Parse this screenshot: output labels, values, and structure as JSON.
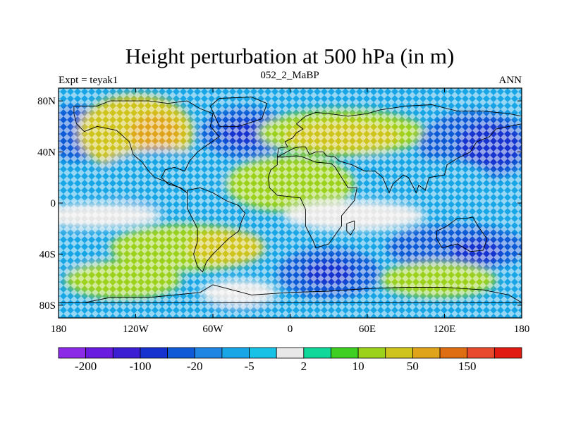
{
  "figure": {
    "title": "Height perturbation at 500 hPa (in m)",
    "left_label": "Expt = teyak1",
    "center_label": "052_2_MaBP",
    "right_label": "ANN"
  },
  "map": {
    "projection": "cylindrical equidistant",
    "lon_range": [
      -180,
      180
    ],
    "lat_range": [
      -90,
      90
    ],
    "x_ticks": [
      "180",
      "120W",
      "60W",
      "0",
      "60E",
      "120E",
      "180"
    ],
    "x_tick_lons": [
      -180,
      -120,
      -60,
      0,
      60,
      120,
      180
    ],
    "y_ticks": [
      "80N",
      "40N",
      "0",
      "40S",
      "80S"
    ],
    "y_tick_lats": [
      80,
      40,
      0,
      -40,
      -80
    ]
  },
  "colorbar": {
    "colors": [
      "#8b2be8",
      "#6a1be0",
      "#3c1fd2",
      "#1633cf",
      "#0f5ad6",
      "#1f86e4",
      "#18a6e6",
      "#18c2e6",
      "#e8e8e8",
      "#10d79a",
      "#3fcf22",
      "#9cd21a",
      "#cfc41c",
      "#e0a41a",
      "#df6e12",
      "#e84a2e",
      "#e11b12"
    ],
    "labels": [
      "-200",
      "-100",
      "-20",
      "-5",
      "2",
      "10",
      "50",
      "150"
    ],
    "label_edges": [
      1,
      3,
      5,
      7,
      9,
      11,
      13,
      15
    ]
  },
  "field_blobs": [
    {
      "lon": -168,
      "lat": 55,
      "rx": 22,
      "ry": 22,
      "level": -2
    },
    {
      "lon": -120,
      "lat": 55,
      "rx": 45,
      "ry": 30,
      "level": 2
    },
    {
      "lon": -105,
      "lat": 55,
      "rx": 20,
      "ry": 14,
      "level": 3
    },
    {
      "lon": -35,
      "lat": 55,
      "rx": 35,
      "ry": 20,
      "level": -2
    },
    {
      "lon": -35,
      "lat": 55,
      "rx": 18,
      "ry": 10,
      "level": -3
    },
    {
      "lon": 40,
      "lat": 55,
      "rx": 65,
      "ry": 18,
      "level": 1
    },
    {
      "lon": 40,
      "lat": 52,
      "rx": 45,
      "ry": 12,
      "level": 2
    },
    {
      "lon": 145,
      "lat": 45,
      "rx": 45,
      "ry": 27,
      "level": -2
    },
    {
      "lon": 155,
      "lat": 45,
      "rx": 25,
      "ry": 18,
      "level": -3
    },
    {
      "lon": -100,
      "lat": 20,
      "rx": 50,
      "ry": 22,
      "level": -1
    },
    {
      "lon": 0,
      "lat": 15,
      "rx": 50,
      "ry": 22,
      "level": 1
    },
    {
      "lon": 110,
      "lat": 20,
      "rx": 45,
      "ry": 14,
      "level": -1
    },
    {
      "lon": 70,
      "lat": 30,
      "rx": 20,
      "ry": 8,
      "level": -1
    },
    {
      "lon": -150,
      "lat": -10,
      "rx": 50,
      "ry": 10,
      "level": 0
    },
    {
      "lon": 50,
      "lat": -10,
      "rx": 55,
      "ry": 12,
      "level": 0
    },
    {
      "lon": -80,
      "lat": -35,
      "rx": 60,
      "ry": 18,
      "level": 1
    },
    {
      "lon": -50,
      "lat": -35,
      "rx": 30,
      "ry": 14,
      "level": 2
    },
    {
      "lon": -168,
      "lat": -40,
      "rx": 22,
      "ry": 15,
      "level": -1
    },
    {
      "lon": 130,
      "lat": -35,
      "rx": 55,
      "ry": 18,
      "level": -2
    },
    {
      "lon": 145,
      "lat": -38,
      "rx": 20,
      "ry": 10,
      "level": -3
    },
    {
      "lon": 30,
      "lat": -55,
      "rx": 40,
      "ry": 20,
      "level": -2
    },
    {
      "lon": 30,
      "lat": -55,
      "rx": 20,
      "ry": 10,
      "level": -3
    },
    {
      "lon": -130,
      "lat": -60,
      "rx": 45,
      "ry": 15,
      "level": 1
    },
    {
      "lon": 115,
      "lat": -60,
      "rx": 45,
      "ry": 14,
      "level": 1
    },
    {
      "lon": -40,
      "lat": -70,
      "rx": 30,
      "ry": 10,
      "level": 0
    },
    {
      "lon": 0,
      "lat": -85,
      "rx": 180,
      "ry": 5,
      "level": -1
    }
  ],
  "coastlines": [
    [
      [
        -168,
        76
      ],
      [
        -150,
        76
      ],
      [
        -140,
        80
      ],
      [
        -110,
        80
      ],
      [
        -95,
        78
      ],
      [
        -80,
        80
      ],
      [
        -70,
        74
      ],
      [
        -60,
        70
      ],
      [
        -62,
        60
      ],
      [
        -55,
        52
      ],
      [
        -65,
        45
      ],
      [
        -72,
        40
      ],
      [
        -78,
        33
      ],
      [
        -82,
        25
      ],
      [
        -90,
        28
      ],
      [
        -97,
        26
      ],
      [
        -100,
        20
      ],
      [
        -95,
        15
      ],
      [
        -85,
        12
      ],
      [
        -80,
        8
      ],
      [
        -86,
        12
      ],
      [
        -92,
        15
      ],
      [
        -105,
        20
      ],
      [
        -110,
        25
      ],
      [
        -115,
        32
      ],
      [
        -122,
        38
      ],
      [
        -125,
        48
      ],
      [
        -135,
        57
      ],
      [
        -150,
        60
      ],
      [
        -160,
        56
      ],
      [
        -166,
        62
      ],
      [
        -168,
        70
      ],
      [
        -168,
        76
      ]
    ],
    [
      [
        -80,
        10
      ],
      [
        -70,
        12
      ],
      [
        -60,
        8
      ],
      [
        -50,
        2
      ],
      [
        -40,
        -2
      ],
      [
        -35,
        -8
      ],
      [
        -38,
        -15
      ],
      [
        -40,
        -22
      ],
      [
        -48,
        -28
      ],
      [
        -55,
        -35
      ],
      [
        -60,
        -40
      ],
      [
        -65,
        -46
      ],
      [
        -68,
        -54
      ],
      [
        -72,
        -50
      ],
      [
        -75,
        -40
      ],
      [
        -72,
        -30
      ],
      [
        -72,
        -20
      ],
      [
        -76,
        -12
      ],
      [
        -80,
        -4
      ],
      [
        -80,
        4
      ],
      [
        -80,
        10
      ]
    ],
    [
      [
        -55,
        60
      ],
      [
        -40,
        60
      ],
      [
        -22,
        66
      ],
      [
        -18,
        78
      ],
      [
        -30,
        83
      ],
      [
        -55,
        82
      ],
      [
        -62,
        76
      ],
      [
        -55,
        60
      ]
    ],
    [
      [
        -10,
        36
      ],
      [
        -5,
        36
      ],
      [
        5,
        37
      ],
      [
        10,
        36
      ],
      [
        20,
        32
      ],
      [
        32,
        31
      ],
      [
        35,
        28
      ],
      [
        40,
        20
      ],
      [
        45,
        12
      ],
      [
        52,
        12
      ],
      [
        50,
        2
      ],
      [
        40,
        -10
      ],
      [
        40,
        -18
      ],
      [
        35,
        -25
      ],
      [
        30,
        -32
      ],
      [
        20,
        -35
      ],
      [
        18,
        -30
      ],
      [
        12,
        -18
      ],
      [
        12,
        -5
      ],
      [
        8,
        4
      ],
      [
        0,
        5
      ],
      [
        -10,
        6
      ],
      [
        -16,
        12
      ],
      [
        -17,
        20
      ],
      [
        -15,
        26
      ],
      [
        -10,
        30
      ],
      [
        -10,
        36
      ]
    ],
    [
      [
        -10,
        36
      ],
      [
        -9,
        43
      ],
      [
        -2,
        44
      ],
      [
        -4,
        48
      ],
      [
        2,
        51
      ],
      [
        5,
        55
      ],
      [
        10,
        58
      ],
      [
        5,
        62
      ],
      [
        12,
        68
      ],
      [
        20,
        71
      ],
      [
        30,
        70
      ],
      [
        45,
        68
      ],
      [
        60,
        70
      ],
      [
        70,
        73
      ],
      [
        90,
        76
      ],
      [
        110,
        77
      ],
      [
        130,
        72
      ],
      [
        150,
        72
      ],
      [
        170,
        70
      ],
      [
        180,
        68
      ],
      [
        180,
        62
      ],
      [
        170,
        60
      ],
      [
        160,
        58
      ],
      [
        155,
        52
      ],
      [
        145,
        48
      ],
      [
        140,
        40
      ],
      [
        130,
        35
      ],
      [
        122,
        30
      ],
      [
        120,
        22
      ],
      [
        108,
        20
      ],
      [
        105,
        10
      ],
      [
        100,
        14
      ],
      [
        98,
        8
      ],
      [
        92,
        20
      ],
      [
        88,
        22
      ],
      [
        80,
        15
      ],
      [
        77,
        8
      ],
      [
        72,
        20
      ],
      [
        66,
        25
      ],
      [
        58,
        25
      ],
      [
        52,
        28
      ],
      [
        48,
        30
      ],
      [
        38,
        33
      ],
      [
        35,
        36
      ],
      [
        28,
        37
      ],
      [
        26,
        40
      ],
      [
        20,
        40
      ],
      [
        15,
        38
      ],
      [
        12,
        44
      ],
      [
        8,
        44
      ],
      [
        3,
        43
      ],
      [
        -10,
        36
      ]
    ],
    [
      [
        114,
        -22
      ],
      [
        122,
        -18
      ],
      [
        130,
        -12
      ],
      [
        137,
        -12
      ],
      [
        142,
        -11
      ],
      [
        146,
        -18
      ],
      [
        153,
        -28
      ],
      [
        150,
        -37
      ],
      [
        140,
        -38
      ],
      [
        130,
        -32
      ],
      [
        118,
        -35
      ],
      [
        114,
        -28
      ],
      [
        114,
        -22
      ]
    ],
    [
      [
        -60,
        -64
      ],
      [
        -30,
        -72
      ],
      [
        0,
        -70
      ],
      [
        30,
        -69
      ],
      [
        60,
        -67
      ],
      [
        90,
        -66
      ],
      [
        120,
        -66
      ],
      [
        150,
        -68
      ],
      [
        170,
        -72
      ],
      [
        180,
        -78
      ],
      [
        -180,
        -78
      ],
      [
        -160,
        -78
      ],
      [
        -140,
        -74
      ],
      [
        -110,
        -74
      ],
      [
        -90,
        -72
      ],
      [
        -70,
        -70
      ],
      [
        -60,
        -64
      ]
    ],
    [
      [
        44,
        -16
      ],
      [
        50,
        -14
      ],
      [
        50,
        -20
      ],
      [
        47,
        -25
      ],
      [
        44,
        -22
      ],
      [
        44,
        -16
      ]
    ]
  ]
}
